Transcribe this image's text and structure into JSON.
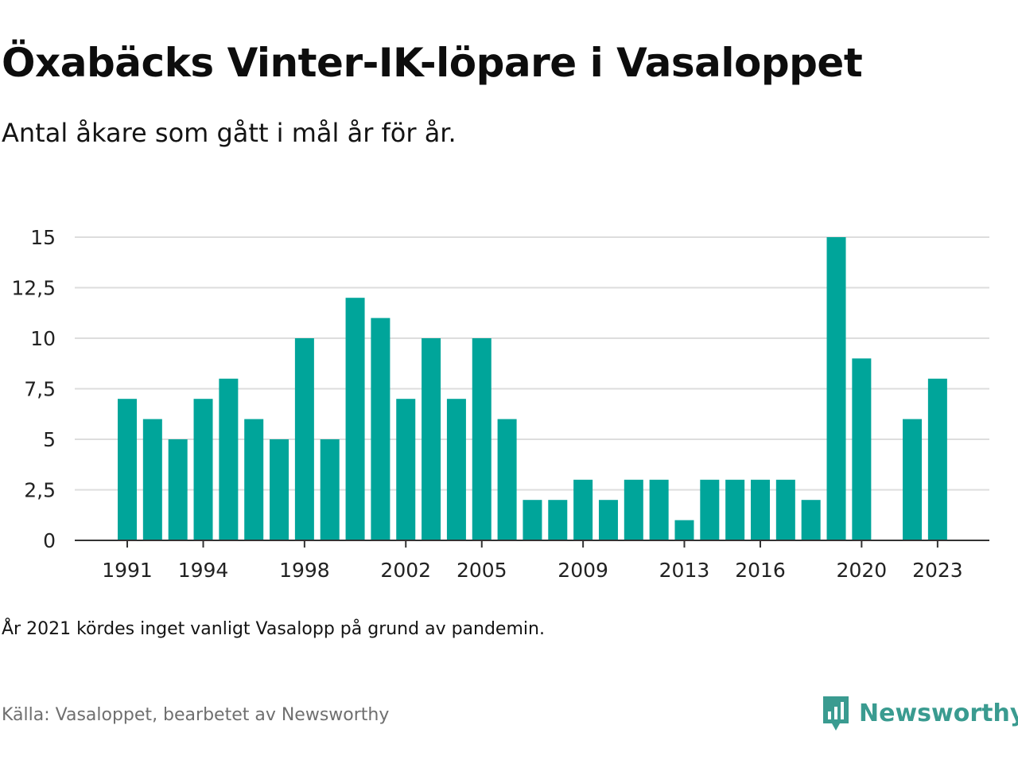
{
  "header": {
    "title": "Öxabäcks Vinter-IK-löpare i Vasaloppet",
    "subtitle": "Antal åkare som gått i mål år för år."
  },
  "footer": {
    "note": "År 2021 kördes inget vanligt Vasalopp på grund av pandemin.",
    "source": "Källa: Vasaloppet, bearbetet av Newsworthy",
    "brand": "Newsworthy"
  },
  "colors": {
    "bar": "#00a59a",
    "grid": "#dddddd",
    "axis": "#333333",
    "brand": "#3a9b90"
  },
  "icons": {
    "brand": "newsworthy-logo-icon"
  },
  "chart_data": {
    "type": "bar",
    "title": "Öxabäcks Vinter-IK-löpare i Vasaloppet",
    "subtitle": "Antal åkare som gått i mål år för år.",
    "xlabel": "",
    "ylabel": "",
    "ylim": [
      0,
      15
    ],
    "grid": true,
    "legend": "none",
    "categories": [
      1991,
      1992,
      1993,
      1994,
      1995,
      1996,
      1997,
      1998,
      1999,
      2000,
      2001,
      2002,
      2003,
      2004,
      2005,
      2006,
      2007,
      2008,
      2009,
      2010,
      2011,
      2012,
      2013,
      2014,
      2015,
      2016,
      2017,
      2018,
      2019,
      2020,
      2021,
      2022,
      2023
    ],
    "values": [
      7,
      6,
      5,
      7,
      8,
      6,
      5,
      10,
      5,
      12,
      11,
      7,
      10,
      7,
      10,
      6,
      2,
      2,
      3,
      2,
      3,
      3,
      1,
      3,
      3,
      3,
      3,
      2,
      15,
      9,
      null,
      6,
      8
    ],
    "x_tick_labels": [
      1991,
      1994,
      1998,
      2002,
      2005,
      2009,
      2013,
      2016,
      2020,
      2023
    ],
    "y_ticks": [
      0,
      2.5,
      5,
      7.5,
      10,
      12.5,
      15
    ],
    "y_tick_labels": [
      "0",
      "2,5",
      "5",
      "7,5",
      "10",
      "12,5",
      "15"
    ]
  }
}
